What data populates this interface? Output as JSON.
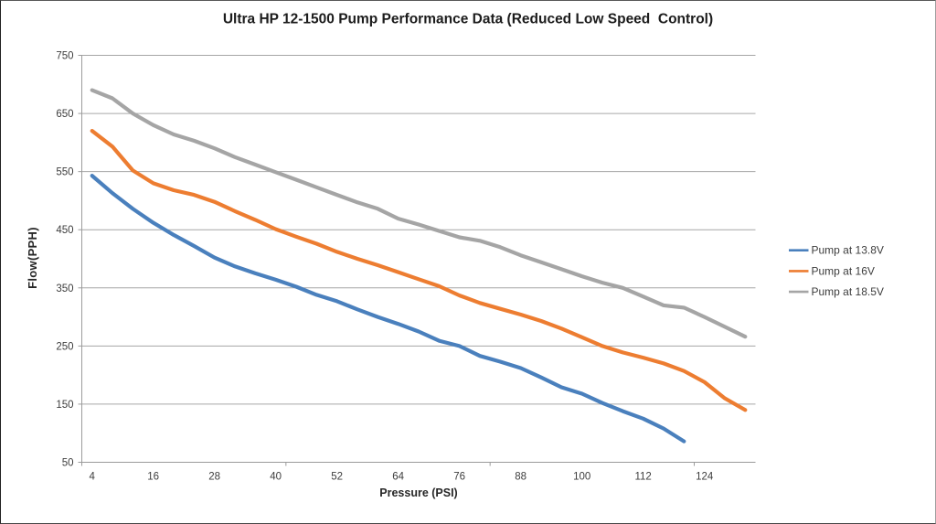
{
  "chart_data": {
    "type": "line",
    "title": "Ultra HP 12-1500 Pump Performance Data (Reduced Low Speed  Control)",
    "xlabel": "Pressure (PSI)",
    "ylabel": "Flow(PPH)",
    "x": [
      4,
      8,
      12,
      16,
      20,
      24,
      28,
      32,
      36,
      40,
      44,
      48,
      52,
      56,
      60,
      64,
      68,
      72,
      76,
      80,
      84,
      88,
      92,
      96,
      100,
      104,
      108,
      112,
      116,
      120,
      124,
      128,
      132
    ],
    "x_tick_labels": [
      "4",
      "16",
      "28",
      "40",
      "52",
      "64",
      "76",
      "88",
      "100",
      "112",
      "124"
    ],
    "x_label_interval": 3,
    "y_ticks": [
      50,
      150,
      250,
      350,
      450,
      550,
      650,
      750
    ],
    "ylim": [
      50,
      750
    ],
    "grid": true,
    "legend_position": "right",
    "series": [
      {
        "name": "Pump at 13.8V",
        "color": "#4a80bd",
        "values": [
          543,
          513,
          486,
          462,
          441,
          422,
          402,
          387,
          375,
          364,
          352,
          338,
          327,
          313,
          300,
          288,
          275,
          259,
          250,
          233,
          223,
          212,
          196,
          179,
          168,
          152,
          138,
          125,
          108,
          86
        ]
      },
      {
        "name": "Pump at 16V",
        "color": "#ed7d31",
        "values": [
          620,
          593,
          552,
          530,
          518,
          510,
          498,
          482,
          467,
          451,
          438,
          426,
          412,
          400,
          389,
          377,
          365,
          353,
          337,
          324,
          314,
          304,
          293,
          280,
          265,
          250,
          239,
          230,
          220,
          207,
          188,
          160,
          140
        ]
      },
      {
        "name": "Pump at 18.5V",
        "color": "#a5a5a5",
        "values": [
          690,
          676,
          650,
          630,
          614,
          603,
          590,
          575,
          562,
          549,
          536,
          523,
          510,
          497,
          486,
          469,
          459,
          448,
          437,
          431,
          420,
          406,
          394,
          382,
          370,
          359,
          350,
          335,
          320,
          316,
          300,
          283,
          266
        ]
      }
    ],
    "colors": {
      "axis": "#9b9b9b",
      "gridline": "#a6a6a6"
    }
  }
}
